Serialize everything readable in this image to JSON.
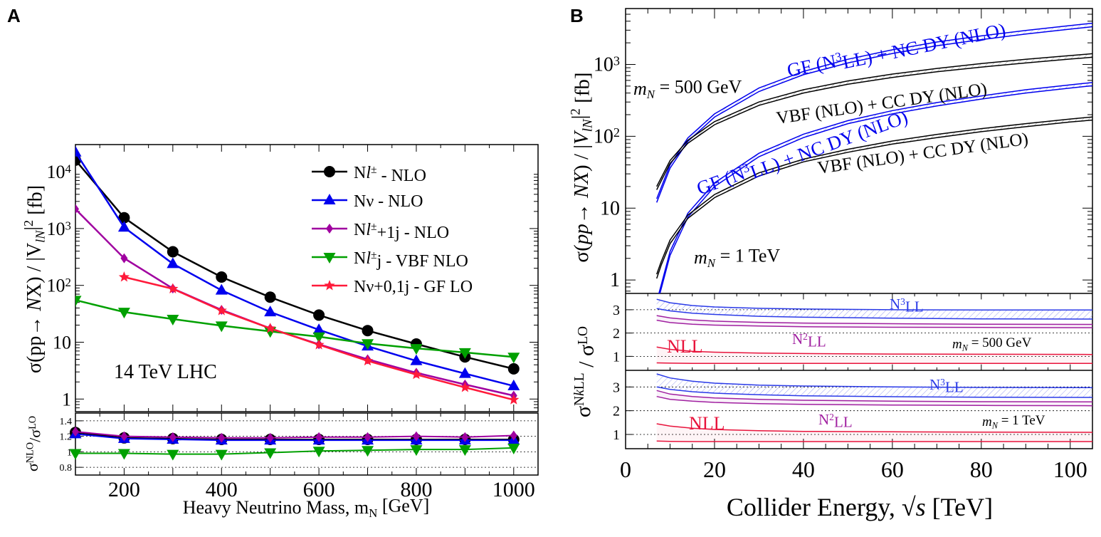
{
  "chart_data": [
    {
      "panel_label": "A",
      "type": "line",
      "title": "",
      "xlabel": "Heavy Neutrino Mass, m",
      "xlabel_sub": "N",
      "xlabel_unit": "[GeV]",
      "ylabel_parts": [
        "σ(pp→ ",
        "N",
        "X) / |V",
        "lN",
        "|",
        "2",
        " [fb]"
      ],
      "ratio_ylabel_parts": [
        "σ",
        "NLO",
        "/σ",
        "LO"
      ],
      "annotation": "14 TeV LHC",
      "xlim": [
        100,
        1050
      ],
      "ylim": [
        0.6,
        30000
      ],
      "yscale": "log",
      "xticks": [
        200,
        400,
        600,
        800,
        1000
      ],
      "xtick_labels": [
        "200",
        "400",
        "600",
        "800",
        "1000"
      ],
      "yticks": [
        1,
        10,
        100,
        1000,
        10000
      ],
      "ytick_labels": [
        [
          "1",
          ""
        ],
        [
          "10",
          ""
        ],
        [
          "10",
          "2"
        ],
        [
          "10",
          "3"
        ],
        [
          "10",
          "4"
        ]
      ],
      "ratio_ylim": [
        0.7,
        1.5
      ],
      "ratio_yticks": [
        0.8,
        1,
        1.2,
        1.4
      ],
      "ratio_ytick_labels": [
        "0.8",
        "1",
        "1.2",
        "1.4"
      ],
      "series": [
        {
          "name": "Nℓ± - NLO",
          "legend_parts": [
            "N",
            "l",
            "±",
            " - NLO"
          ],
          "color": "#000000",
          "marker": "circle",
          "x": [
            100,
            200,
            300,
            400,
            500,
            600,
            700,
            800,
            900,
            1000
          ],
          "values": [
            16000,
            1550,
            390,
            140,
            62,
            30,
            16,
            9.3,
            5.5,
            3.4
          ],
          "ratio": [
            1.25,
            1.18,
            1.17,
            1.16,
            1.16,
            1.16,
            1.16,
            1.16,
            1.16,
            1.16
          ]
        },
        {
          "name": "Nν - NLO",
          "legend_parts": [
            "Nν  - NLO"
          ],
          "color": "#0000ee",
          "marker": "triangle-up",
          "x": [
            100,
            200,
            300,
            400,
            500,
            600,
            700,
            800,
            900,
            1000
          ],
          "values": [
            22000,
            1050,
            240,
            82,
            34,
            16.5,
            8.5,
            4.7,
            2.8,
            1.7
          ],
          "ratio": [
            1.23,
            1.17,
            1.16,
            1.15,
            1.15,
            1.15,
            1.15,
            1.15,
            1.15,
            1.15
          ]
        },
        {
          "name": "Nℓ±+1j - NLO",
          "legend_parts": [
            "N",
            "l",
            "±",
            "+1j - NLO"
          ],
          "color": "#a000a0",
          "marker": "diamond",
          "x": [
            100,
            200,
            300,
            400,
            500,
            600,
            700,
            800,
            900,
            1000
          ],
          "values": [
            2200,
            300,
            88,
            37,
            17.5,
            9.2,
            5.0,
            2.9,
            1.8,
            1.15
          ],
          "ratio": [
            1.26,
            1.2,
            1.19,
            1.18,
            1.18,
            1.19,
            1.19,
            1.2,
            1.19,
            1.21
          ]
        },
        {
          "name": "Nℓ±j - VBF NLO",
          "legend_parts": [
            "N",
            "l",
            "±",
            "j - VBF NLO"
          ],
          "color": "#00a000",
          "marker": "triangle-down",
          "x": [
            100,
            200,
            300,
            400,
            500,
            600,
            700,
            800,
            900,
            1000
          ],
          "values": [
            55,
            34,
            25.5,
            19.5,
            15.5,
            12.5,
            9.5,
            7.8,
            6.6,
            5.5
          ],
          "ratio": [
            0.98,
            0.98,
            0.97,
            0.97,
            0.99,
            1.01,
            1.02,
            1.03,
            1.03,
            1.05
          ]
        },
        {
          "name": "Nν+0,1j - GF LO",
          "legend_parts": [
            "Nν+0,1j - GF LO"
          ],
          "color": "#ff1a3a",
          "marker": "star",
          "x": [
            200,
            300,
            400,
            500,
            600,
            700,
            800,
            900,
            1000
          ],
          "values": [
            140,
            87,
            36,
            17.5,
            9.0,
            4.7,
            2.7,
            1.6,
            0.97
          ]
        }
      ]
    },
    {
      "panel_label": "B",
      "type": "line",
      "title": "",
      "xlabel": "Collider Energy,",
      "xlabel_math": "√s",
      "xlabel_unit": "[TeV]",
      "ylabel_parts": [
        "σ(",
        "pp",
        "→ ",
        "NX",
        ") / |",
        "V",
        "lN",
        "|",
        "2",
        " [fb]"
      ],
      "ratio_ylabel_parts": [
        "σ",
        "N",
        "k",
        "LL",
        " / σ",
        "LO"
      ],
      "xlim": [
        0,
        105
      ],
      "ylim": [
        0.65,
        6000
      ],
      "yscale": "log",
      "xticks": [
        0,
        20,
        40,
        60,
        80,
        100
      ],
      "xtick_labels": [
        "0",
        "20",
        "40",
        "60",
        "80",
        "100"
      ],
      "yticks": [
        1,
        10,
        100,
        1000
      ],
      "ytick_labels": [
        [
          "1",
          ""
        ],
        [
          "10",
          ""
        ],
        [
          "10",
          "2"
        ],
        [
          "10",
          "3"
        ]
      ],
      "ratio_ylim": [
        0.4,
        3.7
      ],
      "ratio_yticks": [
        1,
        2,
        3
      ],
      "ratio_ytick_labels": [
        "1",
        "2",
        "3"
      ],
      "annotations": {
        "mass_500": [
          "m",
          "N",
          " = 500 GeV"
        ],
        "mass_1000": [
          "m",
          "N",
          " = 1 TeV"
        ],
        "gf_label": [
          "GF (N",
          "3",
          "LL) + NC DY (NLO)"
        ],
        "vbf_label": "VBF (NLO) + CC DY (NLO)",
        "n3ll": [
          "N",
          "3",
          "LL"
        ],
        "n2ll": [
          "N",
          "2",
          "LL"
        ],
        "nll": "NLL"
      },
      "series": [
        {
          "name": "GF (N3LL) + NC DY (NLO), mN = 500 GeV",
          "color": "#0000ee",
          "band": true,
          "x": [
            7,
            10,
            14,
            20,
            30,
            40,
            50,
            60,
            70,
            80,
            90,
            100,
            105
          ],
          "low": [
            12,
            36,
            85,
            185,
            420,
            720,
            1050,
            1420,
            1820,
            2220,
            2650,
            3100,
            3350
          ],
          "high": [
            13.5,
            40,
            95,
            205,
            470,
            800,
            1180,
            1600,
            2050,
            2500,
            2980,
            3480,
            3750
          ]
        },
        {
          "name": "VBF (NLO) + CC DY (NLO), mN = 500 GeV",
          "color": "#000000",
          "band": true,
          "x": [
            7,
            10,
            14,
            20,
            30,
            40,
            50,
            60,
            70,
            80,
            90,
            100,
            105
          ],
          "low": [
            18,
            42,
            80,
            145,
            270,
            400,
            530,
            660,
            790,
            920,
            1050,
            1190,
            1260
          ],
          "high": [
            20,
            46,
            88,
            160,
            300,
            445,
            590,
            735,
            880,
            1030,
            1180,
            1330,
            1410
          ]
        },
        {
          "name": "GF (N3LL) + NC DY (NLO), mN = 1 TeV",
          "color": "#0000ee",
          "band": true,
          "x": [
            7,
            8,
            10,
            14,
            20,
            30,
            40,
            50,
            60,
            70,
            80,
            90,
            100,
            105
          ],
          "low": [
            0.45,
            0.75,
            2.2,
            7.5,
            20,
            52,
            96,
            150,
            205,
            265,
            330,
            400,
            470,
            505
          ],
          "high": [
            0.5,
            0.85,
            2.5,
            8.5,
            22.5,
            58,
            107,
            165,
            228,
            295,
            365,
            445,
            520,
            560
          ]
        },
        {
          "name": "VBF (NLO) + CC DY (NLO), mN = 1 TeV",
          "color": "#000000",
          "band": true,
          "x": [
            7,
            8,
            10,
            14,
            20,
            30,
            40,
            50,
            60,
            70,
            80,
            90,
            100,
            105
          ],
          "low": [
            1.05,
            1.6,
            3.2,
            7.2,
            14,
            28,
            44,
            60,
            78,
            96,
            116,
            136,
            158,
            168
          ],
          "high": [
            1.2,
            1.8,
            3.6,
            8.0,
            15.5,
            31,
            48,
            66,
            86,
            106,
            128,
            150,
            174,
            186
          ]
        }
      ],
      "ratio_series": [
        {
          "name": "N3LL, mN = 500 GeV",
          "color": "#2a3ae8",
          "band": true,
          "x": [
            7,
            10,
            15,
            20,
            30,
            40,
            60,
            80,
            105
          ],
          "low": [
            3.05,
            2.95,
            2.85,
            2.8,
            2.72,
            2.68,
            2.64,
            2.61,
            2.6
          ],
          "high": [
            3.45,
            3.3,
            3.18,
            3.12,
            3.06,
            3.03,
            3.0,
            2.99,
            2.99
          ]
        },
        {
          "name": "N2LL, mN = 500 GeV",
          "color": "#a020a0",
          "band": true,
          "x": [
            7,
            10,
            15,
            20,
            30,
            40,
            60,
            80,
            105
          ],
          "low": [
            2.55,
            2.45,
            2.38,
            2.34,
            2.3,
            2.27,
            2.25,
            2.24,
            2.23
          ],
          "high": [
            2.75,
            2.65,
            2.56,
            2.51,
            2.46,
            2.43,
            2.4,
            2.38,
            2.37
          ]
        },
        {
          "name": "NLL, mN = 500 GeV",
          "color": "#e8143c",
          "band": true,
          "x": [
            7,
            10,
            15,
            20,
            30,
            40,
            60,
            80,
            105
          ],
          "low": [
            0.72,
            0.71,
            0.7,
            0.7,
            0.7,
            0.7,
            0.7,
            0.7,
            0.7
          ],
          "high": [
            1.4,
            1.3,
            1.22,
            1.18,
            1.14,
            1.12,
            1.1,
            1.09,
            1.08
          ]
        },
        {
          "name": "N3LL, mN = 1 TeV",
          "color": "#2a3ae8",
          "band": true,
          "x": [
            7,
            10,
            15,
            20,
            30,
            40,
            60,
            80,
            105
          ],
          "low": [
            3.0,
            2.9,
            2.8,
            2.74,
            2.67,
            2.63,
            2.59,
            2.57,
            2.56
          ],
          "high": [
            3.55,
            3.38,
            3.24,
            3.16,
            3.08,
            3.04,
            3.0,
            2.98,
            2.97
          ]
        },
        {
          "name": "N2LL, mN = 1 TeV",
          "color": "#a020a0",
          "band": true,
          "x": [
            7,
            10,
            15,
            20,
            30,
            40,
            60,
            80,
            105
          ],
          "low": [
            2.6,
            2.48,
            2.4,
            2.35,
            2.3,
            2.27,
            2.24,
            2.22,
            2.21
          ],
          "high": [
            2.85,
            2.7,
            2.6,
            2.54,
            2.48,
            2.44,
            2.4,
            2.38,
            2.37
          ]
        },
        {
          "name": "NLL, mN = 1 TeV",
          "color": "#e8143c",
          "band": true,
          "x": [
            7,
            10,
            15,
            20,
            30,
            40,
            60,
            80,
            105
          ],
          "low": [
            0.72,
            0.71,
            0.7,
            0.7,
            0.7,
            0.7,
            0.7,
            0.7,
            0.7
          ],
          "high": [
            1.45,
            1.35,
            1.26,
            1.21,
            1.16,
            1.13,
            1.11,
            1.1,
            1.09
          ]
        }
      ]
    }
  ]
}
